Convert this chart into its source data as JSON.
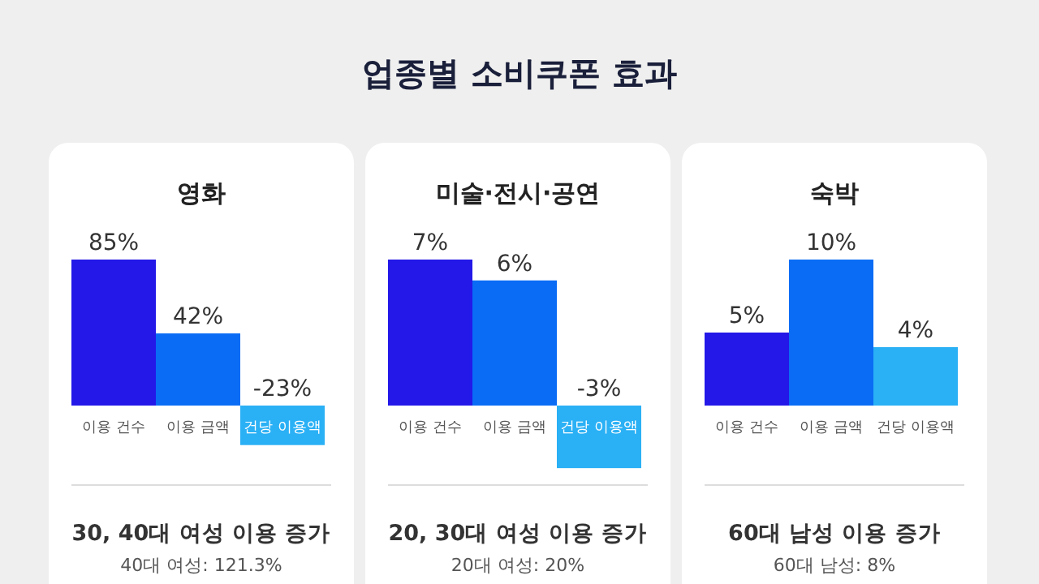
{
  "chart_data": [
    {
      "type": "other",
      "title": "업종별 소비쿠폰 효과"
    },
    {
      "type": "bar",
      "subtitle": "영화",
      "categories": [
        "이용 건수",
        "이용 금액",
        "건당 이용액"
      ],
      "values": [
        85,
        42,
        -23
      ],
      "value_labels": [
        "85%",
        "42%",
        "-23%"
      ],
      "colors": [
        "#2318e8",
        "#0a6cf5",
        "#2ab0f5"
      ],
      "annotations": [
        "30, 40대 여성 이용 증가",
        "40대 여성: 121.3%"
      ]
    },
    {
      "type": "bar",
      "subtitle": "미술·전시·공연",
      "categories": [
        "이용 건수",
        "이용 금액",
        "건당 이용액"
      ],
      "values": [
        7,
        6,
        -3
      ],
      "value_labels": [
        "7%",
        "6%",
        "-3%"
      ],
      "colors": [
        "#2318e8",
        "#0a6cf5",
        "#2ab0f5"
      ],
      "annotations": [
        "20, 30대 여성 이용 증가",
        "20대 여성: 20%"
      ]
    },
    {
      "type": "bar",
      "subtitle": "숙박",
      "categories": [
        "이용 건수",
        "이용 금액",
        "건당 이용액"
      ],
      "values": [
        5,
        10,
        4
      ],
      "value_labels": [
        "5%",
        "10%",
        "4%"
      ],
      "colors": [
        "#2318e8",
        "#0a6cf5",
        "#2ab0f5"
      ],
      "annotations": [
        "60대 남성 이용 증가",
        "60대 남성: 8%"
      ]
    }
  ]
}
